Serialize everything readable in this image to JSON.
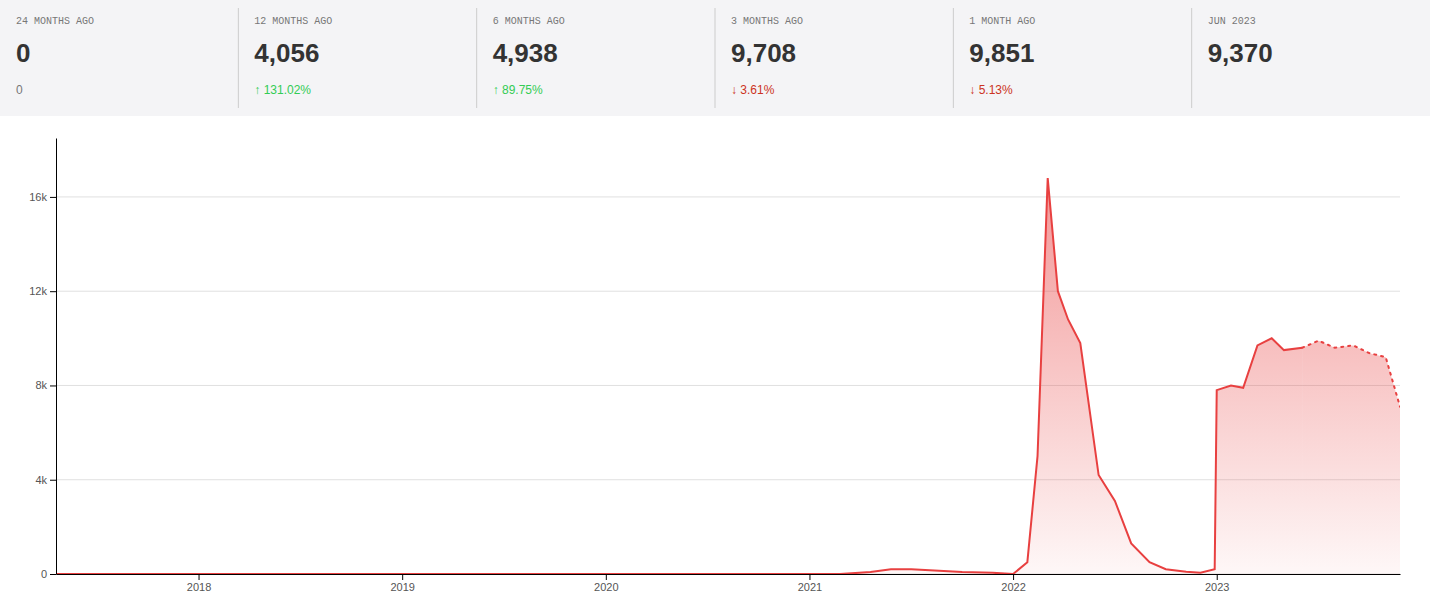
{
  "chart_data": {
    "type": "area",
    "x": [
      2017.3,
      2017.5,
      2018.0,
      2018.5,
      2019.0,
      2019.5,
      2020.0,
      2020.5,
      2020.75,
      2021.0,
      2021.15,
      2021.3,
      2021.4,
      2021.5,
      2021.75,
      2021.9,
      2022.0,
      2022.07,
      2022.12,
      2022.17,
      2022.22,
      2022.27,
      2022.33,
      2022.42,
      2022.5,
      2022.58,
      2022.67,
      2022.75,
      2022.85,
      2022.92,
      2022.99,
      2023.0,
      2023.07,
      2023.13,
      2023.2,
      2023.27,
      2023.33,
      2023.42,
      2023.5,
      2023.58,
      2023.67,
      2023.75,
      2023.83,
      2023.9
    ],
    "series": [
      {
        "color": "#e84040",
        "line_style": "solid",
        "values": [
          0,
          0,
          0,
          0,
          0,
          0,
          0,
          0,
          0,
          0,
          0,
          80,
          200,
          200,
          80,
          50,
          0,
          500,
          5000,
          16800,
          12000,
          10800,
          9800,
          4200,
          3100,
          1300,
          500,
          200,
          100,
          50,
          200,
          7800,
          8000,
          7900,
          9700,
          10000,
          9500,
          9600,
          null,
          null,
          null,
          null,
          null,
          null
        ]
      },
      {
        "color": "#e84040",
        "line_style": "dotted",
        "values": [
          null,
          null,
          null,
          null,
          null,
          null,
          null,
          null,
          null,
          null,
          null,
          null,
          null,
          null,
          null,
          null,
          null,
          null,
          null,
          null,
          null,
          null,
          null,
          null,
          null,
          null,
          null,
          null,
          null,
          null,
          null,
          null,
          null,
          null,
          null,
          null,
          null,
          9600,
          9900,
          9600,
          9700,
          9370,
          9200,
          7100
        ]
      }
    ],
    "xlim": [
      2017.3,
      2023.9
    ],
    "xticks": [
      2018,
      2019,
      2020,
      2021,
      2022,
      2023
    ],
    "ylim": [
      0,
      18500
    ],
    "yticks": [
      0,
      {
        "value": 4000,
        "label": "4k"
      },
      {
        "value": 8000,
        "label": "8k"
      },
      {
        "value": 12000,
        "label": "12k"
      },
      {
        "value": 16000,
        "label": "16k"
      }
    ],
    "grid": true,
    "stats": [
      {
        "label": "24 MONTHS AGO",
        "value": 0,
        "change": 0
      },
      {
        "label": "12 MONTHS AGO",
        "value": {
          "value": 4056,
          "label": "4,056"
        },
        "change": {
          "value": 131.02,
          "label": "↑ 131.02%"
        },
        "color": "#33cc55"
      },
      {
        "label": "6 MONTHS AGO",
        "value": {
          "value": 4938,
          "label": "4,938"
        },
        "change": {
          "value": 89.75,
          "label": "↑ 89.75%"
        },
        "color": "#33cc55"
      },
      {
        "label": "3 MONTHS AGO",
        "value": {
          "value": 9708,
          "label": "9,708"
        },
        "change": {
          "value": -3.61,
          "label": "↓ 3.61%"
        },
        "color": "#cc3322"
      },
      {
        "label": "1 MONTH AGO",
        "value": {
          "value": 9851,
          "label": "9,851"
        },
        "change": {
          "value": -5.13,
          "label": "↓ 5.13%"
        },
        "color": "#cc3322"
      },
      {
        "label": "JUN 2023",
        "value": {
          "value": 9370,
          "label": "9,370"
        }
      }
    ]
  }
}
